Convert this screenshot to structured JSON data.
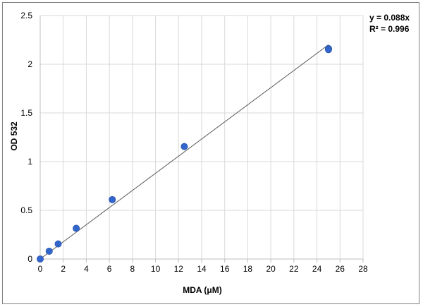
{
  "chart_data": {
    "type": "scatter",
    "xlabel": "MDA (μM)",
    "ylabel": "OD 532",
    "xlim": [
      0,
      28
    ],
    "ylim": [
      0,
      2.5
    ],
    "x_ticks": [
      "0",
      "2",
      "4",
      "6",
      "8",
      "10",
      "12",
      "14",
      "16",
      "18",
      "20",
      "22",
      "24",
      "26",
      "28"
    ],
    "y_ticks": [
      "0",
      "0.5",
      "1",
      "1.5",
      "2",
      "2.5"
    ],
    "grid": true,
    "series": [
      {
        "x": [
          0,
          0.78,
          1.56,
          3.125,
          6.25,
          12.5,
          25,
          25
        ],
        "y": [
          0.0,
          0.08,
          0.155,
          0.315,
          0.61,
          1.155,
          2.16,
          2.15
        ]
      }
    ],
    "trendline": {
      "type": "linear",
      "slope": 0.088,
      "intercept": 0,
      "x_range": [
        0,
        25
      ]
    },
    "annotations": {
      "equation": "y = 0.088x",
      "r_squared": "R² = 0.996"
    },
    "colors": {
      "marker": "#3366cc",
      "trendline": "#595959",
      "grid": "#d9d9d9"
    }
  }
}
